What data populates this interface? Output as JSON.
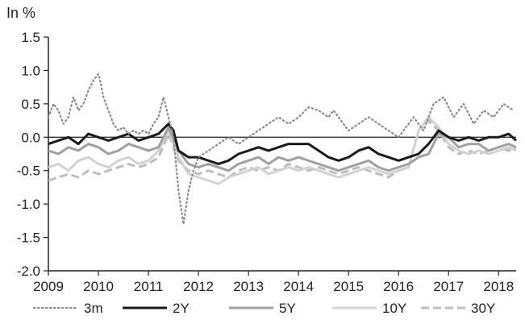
{
  "chart_data": {
    "type": "line",
    "ylabel": "In %",
    "ylim": [
      -2.0,
      1.5
    ],
    "yticks": [
      1.5,
      1.0,
      0.5,
      0.0,
      -0.5,
      -1.0,
      -1.5,
      -2.0
    ],
    "ytick_labels": [
      "1.5",
      "1.0",
      "0.5",
      "0.0",
      "-0.5",
      "-1.0",
      "-1.5",
      "-2.0"
    ],
    "xlim": [
      2009.0,
      2018.35
    ],
    "xticks": [
      2009,
      2010,
      2011,
      2012,
      2013,
      2014,
      2015,
      2016,
      2017,
      2018
    ],
    "xtick_labels": [
      "2009",
      "2010",
      "2011",
      "2012",
      "2013",
      "2014",
      "2015",
      "2016",
      "2017",
      "2018"
    ],
    "grid": false,
    "legend_position": "bottom",
    "series": [
      {
        "name": "3m",
        "color": "#8c8c8c",
        "style": "dotted",
        "x": [
          2009.0,
          2009.1,
          2009.2,
          2009.3,
          2009.4,
          2009.5,
          2009.6,
          2009.7,
          2009.8,
          2009.9,
          2010.0,
          2010.05,
          2010.1,
          2010.2,
          2010.3,
          2010.4,
          2010.5,
          2010.6,
          2010.7,
          2010.8,
          2010.9,
          2011.0,
          2011.1,
          2011.2,
          2011.3,
          2011.4,
          2011.5,
          2011.55,
          2011.6,
          2011.7,
          2011.8,
          2011.9,
          2012.0,
          2012.2,
          2012.4,
          2012.6,
          2012.8,
          2013.0,
          2013.2,
          2013.4,
          2013.6,
          2013.8,
          2014.0,
          2014.2,
          2014.4,
          2014.6,
          2014.7,
          2014.8,
          2015.0,
          2015.2,
          2015.4,
          2015.6,
          2015.8,
          2016.0,
          2016.1,
          2016.3,
          2016.5,
          2016.7,
          2016.9,
          2017.1,
          2017.3,
          2017.5,
          2017.7,
          2017.9,
          2018.1,
          2018.3
        ],
        "y": [
          0.3,
          0.5,
          0.4,
          0.2,
          0.3,
          0.6,
          0.4,
          0.5,
          0.7,
          0.85,
          0.95,
          0.8,
          0.6,
          0.4,
          0.2,
          0.1,
          0.15,
          0.05,
          0.1,
          0.05,
          0.1,
          0.05,
          0.2,
          0.3,
          0.6,
          0.3,
          0.0,
          -0.4,
          -0.8,
          -1.3,
          -0.8,
          -0.5,
          -0.3,
          -0.2,
          -0.1,
          0.0,
          -0.1,
          0.0,
          0.1,
          0.2,
          0.3,
          0.2,
          0.3,
          0.45,
          0.4,
          0.3,
          0.4,
          0.3,
          0.1,
          0.2,
          0.3,
          0.2,
          0.1,
          0.0,
          0.1,
          0.3,
          0.1,
          0.5,
          0.6,
          0.3,
          0.5,
          0.2,
          0.4,
          0.3,
          0.5,
          0.4
        ]
      },
      {
        "name": "2Y",
        "color": "#1a1a1a",
        "style": "solid",
        "x": [
          2009.0,
          2009.2,
          2009.4,
          2009.6,
          2009.8,
          2010.0,
          2010.2,
          2010.4,
          2010.6,
          2010.8,
          2011.0,
          2011.2,
          2011.4,
          2011.5,
          2011.6,
          2011.8,
          2012.0,
          2012.2,
          2012.4,
          2012.6,
          2012.8,
          2013.0,
          2013.2,
          2013.4,
          2013.6,
          2013.8,
          2014.0,
          2014.2,
          2014.4,
          2014.6,
          2014.8,
          2015.0,
          2015.2,
          2015.4,
          2015.6,
          2015.8,
          2016.0,
          2016.2,
          2016.4,
          2016.6,
          2016.8,
          2017.0,
          2017.2,
          2017.4,
          2017.6,
          2017.8,
          2018.0,
          2018.2,
          2018.35
        ],
        "y": [
          -0.1,
          -0.05,
          0.0,
          -0.1,
          0.05,
          0.0,
          -0.05,
          0.0,
          0.05,
          -0.05,
          0.0,
          0.05,
          0.2,
          0.1,
          -0.2,
          -0.3,
          -0.3,
          -0.35,
          -0.4,
          -0.35,
          -0.25,
          -0.2,
          -0.15,
          -0.2,
          -0.15,
          -0.1,
          -0.1,
          -0.1,
          -0.2,
          -0.3,
          -0.35,
          -0.3,
          -0.2,
          -0.15,
          -0.25,
          -0.3,
          -0.35,
          -0.3,
          -0.25,
          -0.1,
          0.1,
          0.0,
          -0.05,
          0.0,
          -0.05,
          0.0,
          0.0,
          0.05,
          -0.05
        ]
      },
      {
        "name": "5Y",
        "color": "#a0a0a0",
        "style": "solid",
        "x": [
          2009.0,
          2009.2,
          2009.4,
          2009.6,
          2009.8,
          2010.0,
          2010.2,
          2010.4,
          2010.6,
          2010.8,
          2011.0,
          2011.2,
          2011.4,
          2011.6,
          2011.8,
          2012.0,
          2012.2,
          2012.4,
          2012.6,
          2012.8,
          2013.0,
          2013.2,
          2013.4,
          2013.6,
          2013.8,
          2014.0,
          2014.2,
          2014.4,
          2014.6,
          2014.8,
          2015.0,
          2015.2,
          2015.4,
          2015.6,
          2015.8,
          2016.0,
          2016.2,
          2016.4,
          2016.6,
          2016.8,
          2017.0,
          2017.2,
          2017.4,
          2017.6,
          2017.8,
          2018.0,
          2018.2,
          2018.35
        ],
        "y": [
          -0.2,
          -0.25,
          -0.15,
          -0.2,
          -0.1,
          -0.15,
          -0.25,
          -0.2,
          -0.1,
          -0.15,
          -0.2,
          -0.15,
          0.15,
          -0.2,
          -0.4,
          -0.45,
          -0.4,
          -0.45,
          -0.5,
          -0.4,
          -0.35,
          -0.3,
          -0.4,
          -0.3,
          -0.35,
          -0.3,
          -0.35,
          -0.4,
          -0.45,
          -0.5,
          -0.45,
          -0.4,
          -0.35,
          -0.45,
          -0.5,
          -0.45,
          -0.4,
          -0.3,
          -0.25,
          0.05,
          0.0,
          -0.15,
          -0.1,
          -0.1,
          -0.2,
          -0.15,
          -0.1,
          -0.15
        ]
      },
      {
        "name": "10Y",
        "color": "#d2d2d2",
        "style": "solid",
        "x": [
          2009.0,
          2009.2,
          2009.4,
          2009.6,
          2009.8,
          2010.0,
          2010.2,
          2010.4,
          2010.6,
          2010.8,
          2011.0,
          2011.2,
          2011.4,
          2011.6,
          2011.8,
          2012.0,
          2012.2,
          2012.4,
          2012.6,
          2012.8,
          2013.0,
          2013.2,
          2013.4,
          2013.6,
          2013.8,
          2014.0,
          2014.2,
          2014.4,
          2014.6,
          2014.8,
          2015.0,
          2015.2,
          2015.4,
          2015.6,
          2015.8,
          2016.0,
          2016.2,
          2016.4,
          2016.6,
          2016.8,
          2017.0,
          2017.2,
          2017.4,
          2017.6,
          2017.8,
          2018.0,
          2018.2,
          2018.35
        ],
        "y": [
          -0.45,
          -0.4,
          -0.5,
          -0.35,
          -0.3,
          -0.4,
          -0.45,
          -0.35,
          -0.3,
          -0.4,
          -0.35,
          -0.2,
          0.1,
          -0.3,
          -0.55,
          -0.6,
          -0.65,
          -0.7,
          -0.6,
          -0.55,
          -0.5,
          -0.45,
          -0.55,
          -0.5,
          -0.45,
          -0.5,
          -0.45,
          -0.5,
          -0.55,
          -0.6,
          -0.55,
          -0.5,
          -0.45,
          -0.5,
          -0.55,
          -0.5,
          -0.45,
          0.1,
          0.3,
          0.15,
          -0.1,
          -0.2,
          -0.25,
          -0.2,
          -0.25,
          -0.2,
          -0.15,
          -0.2
        ]
      },
      {
        "name": "30Y",
        "color": "#bdbdbd",
        "style": "dashed",
        "x": [
          2009.0,
          2009.2,
          2009.4,
          2009.6,
          2009.8,
          2010.0,
          2010.2,
          2010.4,
          2010.6,
          2010.8,
          2011.0,
          2011.2,
          2011.4,
          2011.6,
          2011.8,
          2012.0,
          2012.2,
          2012.4,
          2012.6,
          2012.8,
          2013.0,
          2013.2,
          2013.4,
          2013.6,
          2013.8,
          2014.0,
          2014.2,
          2014.4,
          2014.6,
          2014.8,
          2015.0,
          2015.2,
          2015.4,
          2015.6,
          2015.8,
          2016.0,
          2016.2,
          2016.4,
          2016.6,
          2016.8,
          2017.0,
          2017.2,
          2017.4,
          2017.6,
          2017.8,
          2018.0,
          2018.2,
          2018.35
        ],
        "y": [
          -0.65,
          -0.6,
          -0.55,
          -0.6,
          -0.5,
          -0.55,
          -0.5,
          -0.45,
          -0.4,
          -0.45,
          -0.4,
          -0.3,
          0.05,
          -0.35,
          -0.5,
          -0.55,
          -0.5,
          -0.55,
          -0.6,
          -0.5,
          -0.45,
          -0.5,
          -0.45,
          -0.5,
          -0.4,
          -0.45,
          -0.5,
          -0.45,
          -0.5,
          -0.55,
          -0.5,
          -0.45,
          -0.5,
          -0.55,
          -0.6,
          -0.5,
          -0.45,
          0.1,
          0.25,
          0.1,
          -0.15,
          -0.25,
          -0.2,
          -0.25,
          -0.2,
          -0.15,
          -0.2,
          -0.15
        ]
      }
    ]
  }
}
